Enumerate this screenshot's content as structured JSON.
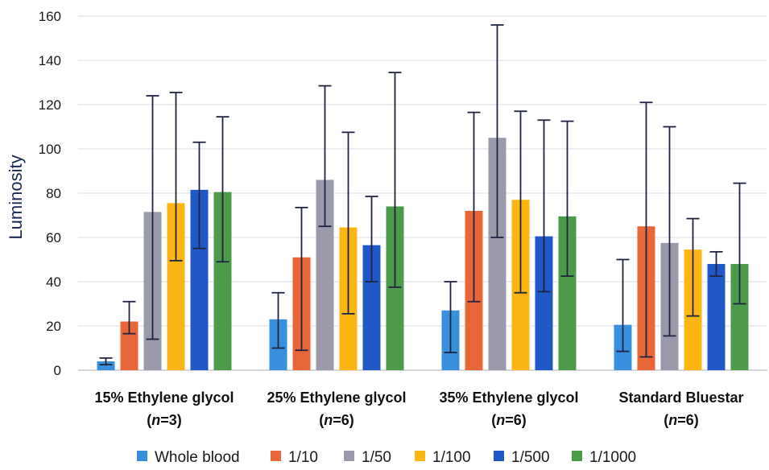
{
  "chart_data": {
    "type": "bar",
    "ylabel": "Luminosity",
    "xlabel": "",
    "ylim": [
      0,
      160
    ],
    "yticks": [
      0,
      20,
      40,
      60,
      80,
      100,
      120,
      140,
      160
    ],
    "grid": true,
    "legend_position": "bottom",
    "categories": [
      {
        "line1": "15% Ethylene glycol",
        "n_prefix": "(",
        "n_symbol": "n",
        "n_suffix": "=3)"
      },
      {
        "line1": "25% Ethylene glycol",
        "n_prefix": "(",
        "n_symbol": "n",
        "n_suffix": "=6)"
      },
      {
        "line1": "35% Ethylene glycol",
        "n_prefix": "(",
        "n_symbol": "n",
        "n_suffix": "=6)"
      },
      {
        "line1": "Standard Bluestar",
        "n_prefix": "(",
        "n_symbol": "n",
        "n_suffix": "=6)"
      }
    ],
    "series": [
      {
        "name": "Whole blood",
        "color": "#3a8fdc",
        "values": [
          4,
          23,
          27,
          20.5
        ],
        "err_low": [
          2.5,
          10,
          8,
          8.5
        ],
        "err_high": [
          5.5,
          35,
          40,
          50
        ]
      },
      {
        "name": "1/10",
        "color": "#e8673a",
        "values": [
          22,
          51,
          72,
          65
        ],
        "err_low": [
          16.5,
          9,
          31,
          6
        ],
        "err_high": [
          31,
          73.5,
          116.5,
          121
        ]
      },
      {
        "name": "1/50",
        "color": "#9a9aab",
        "values": [
          71.5,
          86,
          105,
          57.5
        ],
        "err_low": [
          14,
          65,
          60,
          15.5
        ],
        "err_high": [
          124,
          128.5,
          156,
          110
        ]
      },
      {
        "name": "1/100",
        "color": "#fbb614",
        "values": [
          75.5,
          64.5,
          77,
          54.5
        ],
        "err_low": [
          49.5,
          25.5,
          35,
          24.5
        ],
        "err_high": [
          125.5,
          107.5,
          117,
          68.5
        ]
      },
      {
        "name": "1/500",
        "color": "#2058c8",
        "values": [
          81.5,
          56.5,
          60.5,
          48
        ],
        "err_low": [
          55,
          40,
          35.5,
          42.5
        ],
        "err_high": [
          103,
          78.5,
          113,
          53.5
        ]
      },
      {
        "name": "1/1000",
        "color": "#4e9a4b",
        "values": [
          80.5,
          74,
          69.5,
          48
        ],
        "err_low": [
          49,
          37.5,
          42.5,
          30
        ],
        "err_high": [
          114.5,
          134.5,
          112.5,
          84.5
        ]
      }
    ],
    "colors": {
      "grid": "#d9dee8",
      "axis": "#c8ccd6",
      "error_bar": "#1f2440"
    }
  }
}
